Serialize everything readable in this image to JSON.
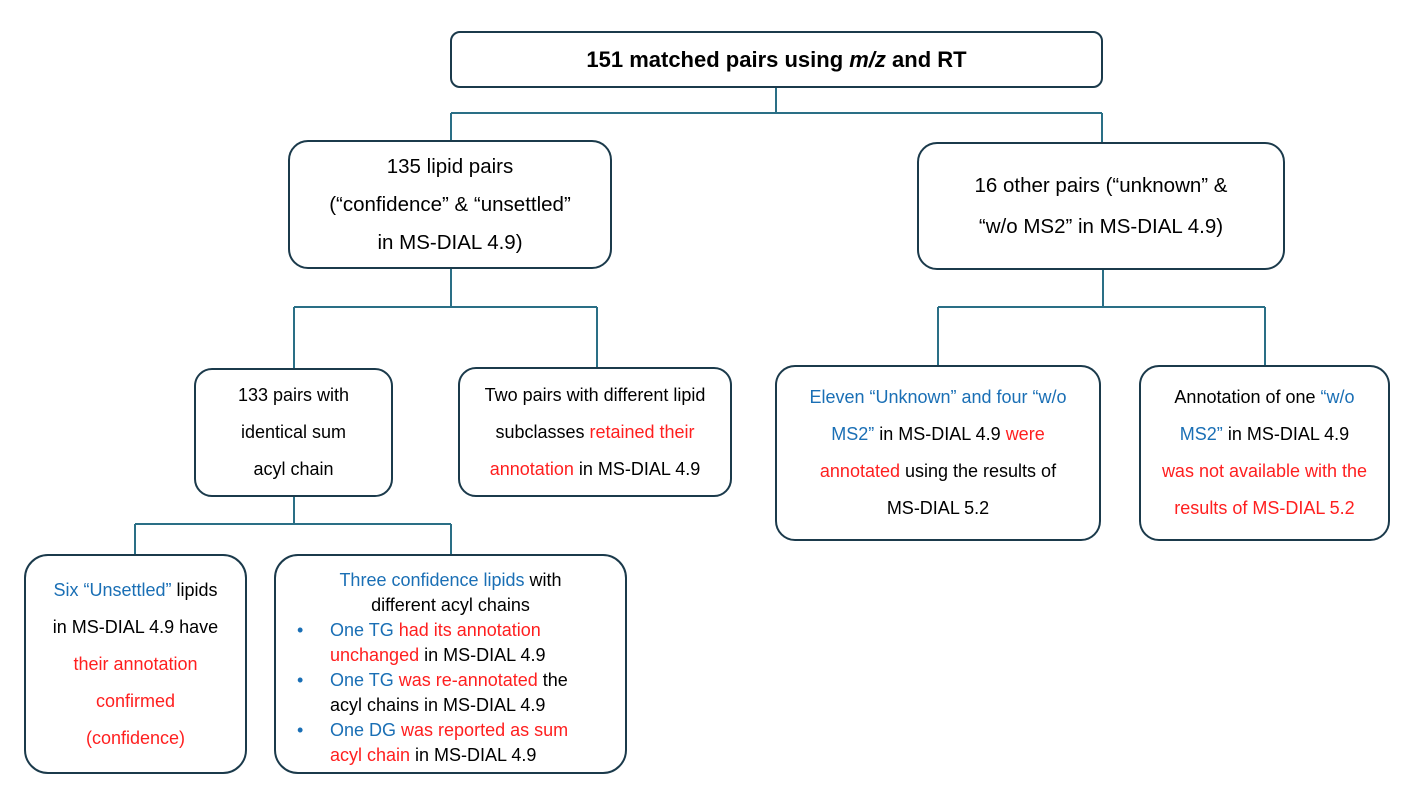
{
  "root": {
    "text_before": "151 matched pairs using ",
    "text_italic": "m/z",
    "text_after": " and RT"
  },
  "lipid_pairs_135": {
    "line1": "135 lipid pairs",
    "line2": "(“confidence” & “unsettled”",
    "line3": "in MS-DIAL 4.9)"
  },
  "other_pairs_16": {
    "line1": "16 other pairs (“unknown” &",
    "line2": "“w/o MS2” in MS-DIAL 4.9)"
  },
  "pairs_133": {
    "line1": "133 pairs with",
    "line2": "identical sum",
    "line3": "acyl chain"
  },
  "two_pairs": {
    "line1": "Two pairs with different lipid",
    "line2_black": "subclasses ",
    "line2_red": "retained their",
    "line3_red": "annotation",
    "line3_black": " in MS-DIAL 4.9"
  },
  "eleven_unknown": {
    "line1_blue": "Eleven “Unknown” and four “w/o",
    "line2_blue": "MS2”",
    "line2_black": " in MS-DIAL 4.9 ",
    "line2_red": "were",
    "line3_red": "annotated",
    "line3_black": " using the results of",
    "line4": "MS-DIAL 5.2"
  },
  "annotation_one": {
    "line1_black": "Annotation of one ",
    "line1_blue": "“w/o",
    "line2_blue": "MS2”",
    "line2_black": " in MS-DIAL 4.9",
    "line3_red": "was not available with the",
    "line4_red": "results of MS-DIAL 5.2"
  },
  "six_unsettled": {
    "line1_blue": "Six “Unsettled”",
    "line1_black": " lipids",
    "line2": "in MS-DIAL 4.9 have",
    "line3_red": "their annotation",
    "line4_red": "confirmed",
    "line5_red": "(confidence)"
  },
  "three_confidence": {
    "head_blue": "Three confidence lipids",
    "head_black": " with",
    "head_line2": "different acyl chains",
    "bullet_glyph": "•",
    "items": [
      {
        "blue": "One TG ",
        "red1": "had its annotation",
        "red2": "unchanged",
        "black": " in MS-DIAL 4.9"
      },
      {
        "blue": "One TG ",
        "red1": "was re-annotated",
        "black1": " the",
        "black2": "acyl chains in MS-DIAL 4.9"
      },
      {
        "blue": "One DG ",
        "red1": "was reported as sum",
        "red2": "acyl chain",
        "black": " in MS-DIAL 4.9"
      }
    ]
  },
  "colors": {
    "border": "#1b3a4b",
    "connector": "#2a6f86",
    "blue_text": "#1a6fb5",
    "red_text": "#ff1f1f"
  }
}
